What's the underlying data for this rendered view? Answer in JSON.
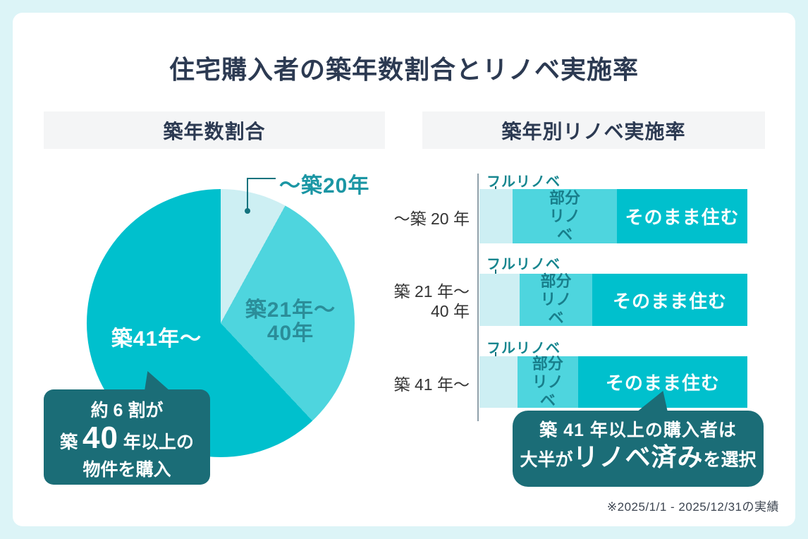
{
  "page": {
    "title": "住宅購入者の築年数割合とリノベ実施率",
    "footnote": "※2025/1/1 - 2025/12/31の実績"
  },
  "colors": {
    "background": "#dcf4f7",
    "card": "#ffffff",
    "header_bg": "#f4f5f6",
    "title_navy": "#2c3a52",
    "slice_light": "#cdeff3",
    "slice_mid": "#4ed5de",
    "slice_dark": "#00c0cd",
    "bubble_teal": "#1b6d77",
    "teal_text": "#15858e",
    "callout": "#13737e"
  },
  "pie_section": {
    "header": "築年数割合",
    "label_light": "～築20年",
    "label_mid_line1": "築21年～",
    "label_mid_line2": "40年",
    "label_dark": "築41年～",
    "bubble": {
      "line1": "約 6 割が",
      "line2_pre": "築 ",
      "line2_big": "40",
      "line2_post": " 年以上の",
      "line3": "物件を購入"
    }
  },
  "bar_section": {
    "header": "築年別リノベ実施率",
    "row_labels": {
      "row1": "～築 20 年",
      "row2_line1": "築 21 年～",
      "row2_line2": "40 年",
      "row3": "築 41 年～"
    },
    "bubble": {
      "line1": "築 41 年以上の購入者は",
      "line2_pre": "大半が",
      "line2_big": "リノベ済み",
      "line2_post": "を選択"
    }
  },
  "chart_data": [
    {
      "type": "pie",
      "title": "築年数割合",
      "slices": [
        {
          "label": "～築20年",
          "percent": 8,
          "color": "#cdeff3"
        },
        {
          "label": "築21年～40年",
          "percent": 30,
          "color": "#4ed5de"
        },
        {
          "label": "築41年～",
          "percent": 62,
          "color": "#00c0cd"
        }
      ],
      "start_angle_deg": 0,
      "annotation": "約6割が築40年以上の物件を購入"
    },
    {
      "type": "bar",
      "title": "築年別リノベ実施率",
      "stacked": true,
      "orientation": "horizontal",
      "unit": "percent",
      "categories": [
        "～築 20 年",
        "築 21 年～ 40 年",
        "築 41 年～"
      ],
      "series": [
        {
          "name": "フルリノベ",
          "color": "#cdeff3",
          "values": [
            12.4,
            15.0,
            14.2
          ]
        },
        {
          "name": "部分リノベ",
          "color": "#4ed5de",
          "values": [
            38.9,
            27.1,
            22.6
          ]
        },
        {
          "name": "そのまま住む",
          "color": "#00c0cd",
          "values": [
            48.7,
            57.9,
            63.2
          ]
        }
      ],
      "annotation": "築41年以上の購入者は大半がリノベ済みを選択"
    }
  ]
}
